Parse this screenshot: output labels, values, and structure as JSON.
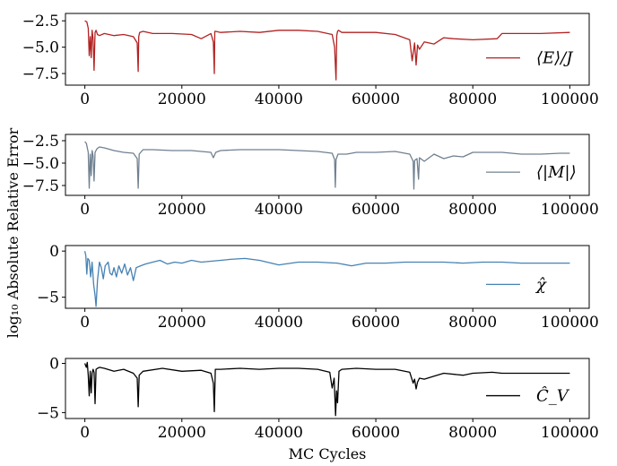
{
  "chart_data": {
    "type": "line",
    "xlabel": "MC Cycles",
    "ylabel": "log₁₀ Absolute Relative Error",
    "xlim": [
      -4000,
      104000
    ],
    "xticks": [
      0,
      20000,
      40000,
      60000,
      80000,
      100000
    ],
    "xtick_labels": [
      "0",
      "20000",
      "40000",
      "60000",
      "80000",
      "100000"
    ],
    "legend_placement": "right",
    "grid": false,
    "panels": [
      {
        "legend": "⟨E⟩/J",
        "color": "#b22222",
        "ylim": [
          -8.6,
          -1.8
        ],
        "yticks": [
          -2.5,
          -5.0,
          -7.5
        ],
        "ytick_labels": [
          "−2.5",
          "−5.0",
          "−7.5"
        ],
        "series": {
          "x": [
            0,
            400,
            700,
            900,
            1100,
            1300,
            1500,
            1700,
            1900,
            2100,
            2300,
            2600,
            3000,
            4000,
            6000,
            8000,
            10000,
            10800,
            11000,
            11100,
            11300,
            12000,
            14000,
            18000,
            22000,
            24000,
            26000,
            26500,
            26700,
            26800,
            27000,
            28000,
            32000,
            36000,
            40000,
            44000,
            48000,
            51000,
            51500,
            51800,
            51950,
            52100,
            52300,
            53000,
            56000,
            60000,
            64000,
            67000,
            67500,
            68000,
            68300,
            68600,
            69000,
            70000,
            72000,
            74000,
            76000,
            80000,
            85000,
            86000,
            90000,
            94000,
            100000
          ],
          "y": [
            -2.5,
            -2.6,
            -3.2,
            -5.8,
            -4.0,
            -6.0,
            -3.4,
            -4.2,
            -7.2,
            -3.6,
            -3.4,
            -3.8,
            -3.9,
            -3.7,
            -3.9,
            -3.8,
            -4.0,
            -4.6,
            -7.3,
            -4.0,
            -3.6,
            -3.5,
            -3.7,
            -3.7,
            -3.8,
            -4.2,
            -3.7,
            -4.5,
            -7.5,
            -3.5,
            -3.5,
            -3.6,
            -3.5,
            -3.6,
            -3.4,
            -3.4,
            -3.5,
            -3.8,
            -5.0,
            -8.1,
            -3.9,
            -3.5,
            -3.4,
            -3.6,
            -3.6,
            -3.6,
            -3.8,
            -4.3,
            -6.3,
            -4.6,
            -6.7,
            -4.8,
            -5.2,
            -4.5,
            -4.7,
            -4.1,
            -4.2,
            -4.3,
            -4.2,
            -3.7,
            -3.7,
            -3.7,
            -3.6
          ]
        }
      },
      {
        "legend": "⟨|M|⟩",
        "color": "#708090",
        "ylim": [
          -8.6,
          -1.8
        ],
        "yticks": [
          -2.5,
          -5.0,
          -7.5
        ],
        "ytick_labels": [
          "−2.5",
          "−5.0",
          "−7.5"
        ],
        "series": {
          "x": [
            0,
            300,
            700,
            900,
            1100,
            1300,
            1500,
            1700,
            1900,
            2100,
            2500,
            3000,
            4000,
            6000,
            8000,
            10000,
            10800,
            11000,
            11200,
            12000,
            14000,
            18000,
            22000,
            26000,
            26500,
            27000,
            28000,
            32000,
            36000,
            40000,
            44000,
            48000,
            51000,
            51500,
            51650,
            51800,
            52200,
            54000,
            56000,
            60000,
            64000,
            67000,
            67700,
            67850,
            68000,
            68500,
            68800,
            69000,
            70000,
            72000,
            74000,
            76000,
            78000,
            80000,
            86000,
            90000,
            94000,
            98000,
            100000
          ],
          "y": [
            -2.6,
            -2.8,
            -3.8,
            -7.8,
            -4.0,
            -6.4,
            -3.6,
            -4.2,
            -7.0,
            -3.8,
            -3.4,
            -3.2,
            -3.3,
            -3.6,
            -3.8,
            -3.9,
            -4.5,
            -7.8,
            -4.0,
            -3.5,
            -3.5,
            -3.6,
            -3.6,
            -3.8,
            -4.4,
            -3.8,
            -3.6,
            -3.5,
            -3.5,
            -3.5,
            -3.6,
            -3.7,
            -3.9,
            -4.6,
            -7.7,
            -4.6,
            -4.0,
            -4.0,
            -3.8,
            -3.8,
            -3.7,
            -4.0,
            -4.8,
            -7.9,
            -4.7,
            -4.5,
            -6.8,
            -4.4,
            -4.8,
            -4.0,
            -4.5,
            -4.2,
            -4.3,
            -3.8,
            -3.8,
            -4.0,
            -4.0,
            -3.9,
            -3.9
          ]
        }
      },
      {
        "legend": "χ̂",
        "color": "#4682b4",
        "ylim": [
          -6.2,
          0.6
        ],
        "yticks": [
          0,
          -5
        ],
        "ytick_labels": [
          "0",
          "−5"
        ],
        "series": {
          "x": [
            0,
            200,
            400,
            600,
            900,
            1200,
            1500,
            1800,
            2100,
            2300,
            2600,
            3000,
            3400,
            3800,
            4200,
            4800,
            5200,
            5600,
            6000,
            6500,
            7000,
            7600,
            8200,
            8800,
            9400,
            10000,
            10600,
            11500,
            12500,
            14000,
            15500,
            17000,
            18500,
            20000,
            22000,
            24000,
            26000,
            28000,
            30000,
            33000,
            36000,
            40000,
            44000,
            48000,
            52000,
            55000,
            58000,
            62000,
            66000,
            70000,
            74000,
            78000,
            82000,
            86000,
            90000,
            94000,
            98000,
            100000
          ],
          "y": [
            0.0,
            -0.5,
            -2.5,
            -0.8,
            -1.0,
            -2.8,
            -1.2,
            -3.6,
            -4.8,
            -6.0,
            -3.2,
            -1.2,
            -1.8,
            -3.0,
            -1.6,
            -1.2,
            -2.4,
            -2.6,
            -1.8,
            -2.8,
            -1.6,
            -2.4,
            -1.4,
            -2.6,
            -1.8,
            -3.2,
            -1.8,
            -1.6,
            -1.4,
            -1.2,
            -1.0,
            -1.4,
            -1.2,
            -1.3,
            -1.0,
            -1.2,
            -1.1,
            -1.0,
            -0.9,
            -0.8,
            -1.0,
            -1.5,
            -1.2,
            -1.2,
            -1.3,
            -1.6,
            -1.3,
            -1.3,
            -1.2,
            -1.2,
            -1.2,
            -1.3,
            -1.2,
            -1.2,
            -1.3,
            -1.3,
            -1.3,
            -1.3
          ]
        }
      },
      {
        "legend": "Ĉ_V",
        "color": "#000000",
        "ylim": [
          -5.6,
          0.5
        ],
        "yticks": [
          0,
          -5
        ],
        "ytick_labels": [
          "0",
          "−5"
        ],
        "series": {
          "x": [
            0,
            300,
            500,
            700,
            900,
            1100,
            1300,
            1500,
            1700,
            1900,
            2100,
            2300,
            2600,
            3000,
            4000,
            6000,
            8000,
            10000,
            10800,
            11000,
            11200,
            12000,
            16000,
            20000,
            24000,
            26000,
            26500,
            26700,
            26900,
            28000,
            32000,
            36000,
            40000,
            44000,
            48000,
            50500,
            51000,
            51400,
            51700,
            51900,
            52100,
            52400,
            53000,
            56000,
            60000,
            64000,
            67000,
            67700,
            68000,
            68300,
            68600,
            69000,
            70000,
            72000,
            74000,
            78000,
            80000,
            84000,
            86000,
            90000,
            94000,
            98000,
            100000
          ],
          "y": [
            0.0,
            -0.4,
            0.1,
            -1.2,
            -3.3,
            -0.8,
            -3.0,
            -1.0,
            -0.6,
            -0.9,
            -4.1,
            -0.6,
            -0.5,
            -0.4,
            -0.5,
            -0.8,
            -0.6,
            -1.0,
            -1.5,
            -4.4,
            -1.2,
            -0.8,
            -0.5,
            -0.8,
            -0.7,
            -1.0,
            -2.0,
            -4.9,
            -0.6,
            -0.6,
            -0.5,
            -0.6,
            -0.5,
            -0.5,
            -0.6,
            -0.9,
            -2.5,
            -1.5,
            -5.3,
            -2.8,
            -4.0,
            -0.8,
            -0.6,
            -0.5,
            -0.6,
            -0.6,
            -0.9,
            -2.0,
            -1.6,
            -2.6,
            -1.9,
            -1.5,
            -1.6,
            -1.3,
            -1.0,
            -1.2,
            -1.0,
            -0.9,
            -1.0,
            -1.0,
            -1.0,
            -1.0,
            -1.0
          ]
        }
      }
    ]
  }
}
